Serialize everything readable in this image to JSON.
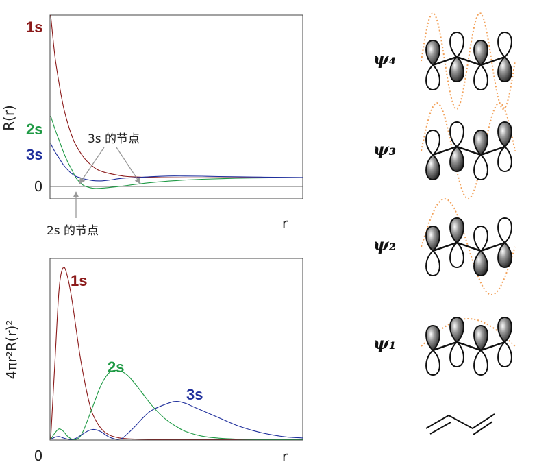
{
  "chart_data": [
    {
      "type": "line",
      "title": "",
      "ylabel": "R(r)",
      "xlabel": "r",
      "y_tick_labels": [
        "0"
      ],
      "xlim": [
        0,
        30
      ],
      "ylim": [
        -0.13,
        1.0
      ],
      "series": [
        {
          "name": "1s",
          "color": "#8b1a1a",
          "x": [
            0,
            0.5,
            1,
            1.5,
            2,
            2.5,
            3,
            4,
            5,
            6,
            8,
            10,
            15,
            20,
            25,
            30
          ],
          "y": [
            1.0,
            0.75,
            0.58,
            0.44,
            0.34,
            0.26,
            0.2,
            0.12,
            0.07,
            0.04,
            0.015,
            0.005,
            0.0,
            0.0,
            0.0,
            0.0
          ]
        },
        {
          "name": "2s",
          "color": "#1f9a45",
          "x": [
            0,
            0.5,
            1,
            1.5,
            2,
            2.5,
            3,
            3.5,
            4,
            5,
            6,
            8,
            10,
            12,
            15,
            18,
            22,
            26,
            30
          ],
          "y": [
            0.38,
            0.3,
            0.23,
            0.16,
            0.1,
            0.05,
            0.0,
            -0.03,
            -0.05,
            -0.065,
            -0.065,
            -0.055,
            -0.042,
            -0.03,
            -0.018,
            -0.01,
            -0.004,
            -0.001,
            0.0
          ]
        },
        {
          "name": "3s",
          "color": "#1f2f9c",
          "x": [
            0,
            0.5,
            1,
            1.5,
            2,
            2.5,
            3,
            3.5,
            4,
            5,
            6,
            7,
            8,
            9,
            10,
            12,
            14,
            16,
            18,
            20,
            24,
            28,
            30
          ],
          "y": [
            0.21,
            0.16,
            0.12,
            0.08,
            0.05,
            0.025,
            0.008,
            0.0,
            -0.008,
            -0.018,
            -0.02,
            -0.015,
            -0.007,
            -0.002,
            0.0,
            0.006,
            0.01,
            0.01,
            0.009,
            0.007,
            0.004,
            0.002,
            0.001
          ]
        }
      ],
      "annotations": [
        {
          "text": "3s 的节点",
          "points_to_x": [
            3.5,
            10.5
          ]
        },
        {
          "text": "2s 的节点",
          "points_to_x": [
            3.0
          ]
        }
      ]
    },
    {
      "type": "line",
      "title": "",
      "ylabel": "4πr²R(r)²",
      "xlabel": "r",
      "x_tick_labels": [
        "0"
      ],
      "xlim": [
        0,
        30
      ],
      "ylim": [
        0,
        1.0
      ],
      "series": [
        {
          "name": "1s",
          "color": "#8b1a1a",
          "x": [
            0,
            0.5,
            1,
            1.5,
            2,
            2.5,
            3,
            3.5,
            4,
            4.5,
            5,
            6,
            7,
            8,
            9,
            10,
            12,
            15,
            30
          ],
          "y": [
            0,
            0.42,
            0.83,
            0.95,
            0.9,
            0.78,
            0.62,
            0.46,
            0.33,
            0.22,
            0.14,
            0.06,
            0.024,
            0.01,
            0.004,
            0.0015,
            0.0,
            0.0,
            0.0
          ]
        },
        {
          "name": "2s",
          "color": "#1f9a45",
          "x": [
            0,
            0.5,
            1,
            1.5,
            2,
            2.5,
            3,
            3.5,
            4,
            5,
            6,
            7,
            8,
            9,
            10,
            11,
            12,
            13,
            14,
            15,
            16,
            18,
            20,
            22,
            25,
            30
          ],
          "y": [
            0,
            0.035,
            0.058,
            0.045,
            0.018,
            0.002,
            0.0,
            0.015,
            0.06,
            0.18,
            0.3,
            0.37,
            0.38,
            0.36,
            0.31,
            0.25,
            0.19,
            0.14,
            0.1,
            0.07,
            0.045,
            0.018,
            0.007,
            0.002,
            0.0,
            0.0
          ]
        },
        {
          "name": "3s",
          "color": "#1f2f9c",
          "x": [
            0,
            0.5,
            1,
            1.5,
            2,
            2.5,
            3,
            3.5,
            4,
            4.5,
            5,
            5.5,
            6,
            6.5,
            7,
            7.5,
            8,
            8.5,
            9,
            10,
            11,
            12,
            14,
            15,
            16,
            17,
            18,
            20,
            22,
            24,
            26,
            28,
            30
          ],
          "y": [
            0,
            0.012,
            0.016,
            0.008,
            0.002,
            0.0,
            0.006,
            0.02,
            0.035,
            0.048,
            0.055,
            0.052,
            0.042,
            0.026,
            0.012,
            0.004,
            0.0,
            0.006,
            0.025,
            0.07,
            0.12,
            0.16,
            0.2,
            0.21,
            0.2,
            0.18,
            0.16,
            0.12,
            0.08,
            0.05,
            0.028,
            0.014,
            0.008
          ]
        }
      ]
    }
  ],
  "orbitals": [
    {
      "label": "ψ₄",
      "lobe_shading": [
        [
          1,
          0
        ],
        [
          0,
          1
        ],
        [
          1,
          0
        ],
        [
          0,
          1
        ]
      ]
    },
    {
      "label": "ψ₃",
      "lobe_shading": [
        [
          0,
          1
        ],
        [
          0,
          1
        ],
        [
          1,
          0
        ],
        [
          1,
          0
        ]
      ]
    },
    {
      "label": "ψ₂",
      "lobe_shading": [
        [
          1,
          0
        ],
        [
          1,
          0
        ],
        [
          0,
          1
        ],
        [
          0,
          1
        ]
      ]
    },
    {
      "label": "ψ₁",
      "lobe_shading": [
        [
          1,
          0
        ],
        [
          1,
          0
        ],
        [
          1,
          0
        ],
        [
          1,
          0
        ]
      ]
    }
  ],
  "colors": {
    "axis": "#444444",
    "zero_line": "#666666",
    "annotation_arrow": "#999999",
    "wave_dotted": "#f2a25b",
    "lobe_fill": "#3a3a3a"
  },
  "icons": {
    "molecule": "butadiene-skeletal-icon"
  }
}
